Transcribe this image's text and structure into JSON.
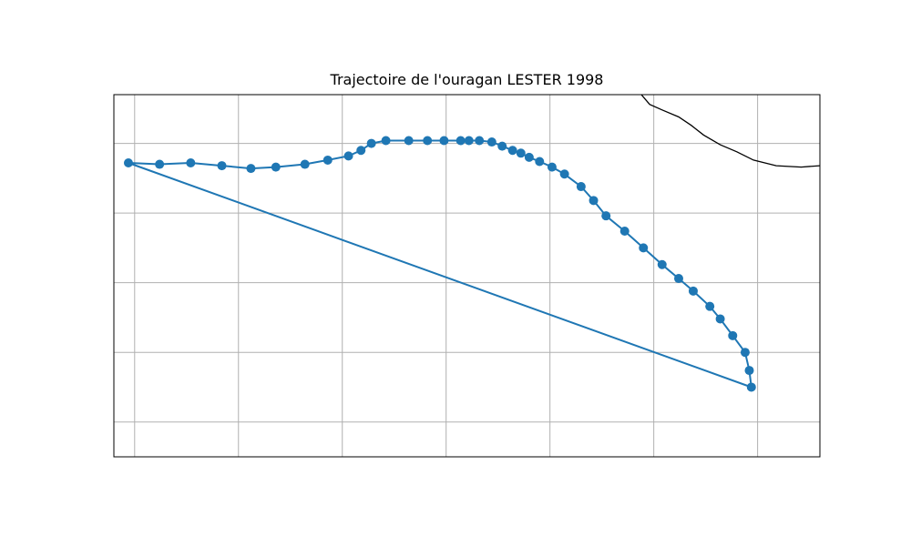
{
  "chart_data": {
    "type": "line",
    "title": "Trajectoire de l'ouragan LESTER 1998",
    "xlabel": "",
    "ylabel": "",
    "grid": true,
    "xlim": [
      -138,
      -104
    ],
    "ylim": [
      10,
      36
    ],
    "gridlines_x": [
      -137,
      -132,
      -127,
      -122,
      -117,
      -112,
      -107
    ],
    "gridlines_y": [
      12.5,
      17.5,
      22.5,
      27.5,
      32.5
    ],
    "line_color": "#1f77b4",
    "coastline_color": "#000000",
    "series": [
      {
        "x": [
          -107.3,
          -107.4,
          -107.6,
          -108.2,
          -108.8,
          -109.3,
          -110.1,
          -110.8,
          -111.6,
          -112.5,
          -113.4,
          -114.3,
          -114.9,
          -115.5,
          -116.3,
          -116.9,
          -117.5,
          -118.0,
          -118.4,
          -118.8,
          -119.3,
          -119.8,
          -120.4,
          -120.9,
          -121.3,
          -122.1,
          -122.9,
          -123.8,
          -124.9,
          -125.6,
          -126.1,
          -126.7,
          -127.7,
          -128.8,
          -130.2,
          -131.4,
          -132.8,
          -134.3,
          -135.8,
          -137.3
        ],
        "y": [
          15.0,
          16.2,
          17.5,
          18.7,
          19.9,
          20.8,
          21.9,
          22.8,
          23.8,
          25.0,
          26.2,
          27.3,
          28.4,
          29.4,
          30.3,
          30.8,
          31.2,
          31.5,
          31.8,
          32.0,
          32.3,
          32.6,
          32.7,
          32.7,
          32.7,
          32.7,
          32.7,
          32.7,
          32.7,
          32.5,
          32.0,
          31.6,
          31.3,
          31.0,
          30.8,
          30.7,
          30.9,
          31.1,
          31.0,
          31.1
        ]
      }
    ],
    "coastline": {
      "x": [
        -112.6,
        -112.2,
        -111.6,
        -110.8,
        -110.2,
        -109.6,
        -108.8,
        -108.0,
        -107.2,
        -106.1,
        -104.9,
        -104.0
      ],
      "y": [
        36.0,
        35.3,
        34.9,
        34.4,
        33.8,
        33.1,
        32.4,
        31.9,
        31.3,
        30.9,
        30.8,
        30.9
      ]
    }
  }
}
